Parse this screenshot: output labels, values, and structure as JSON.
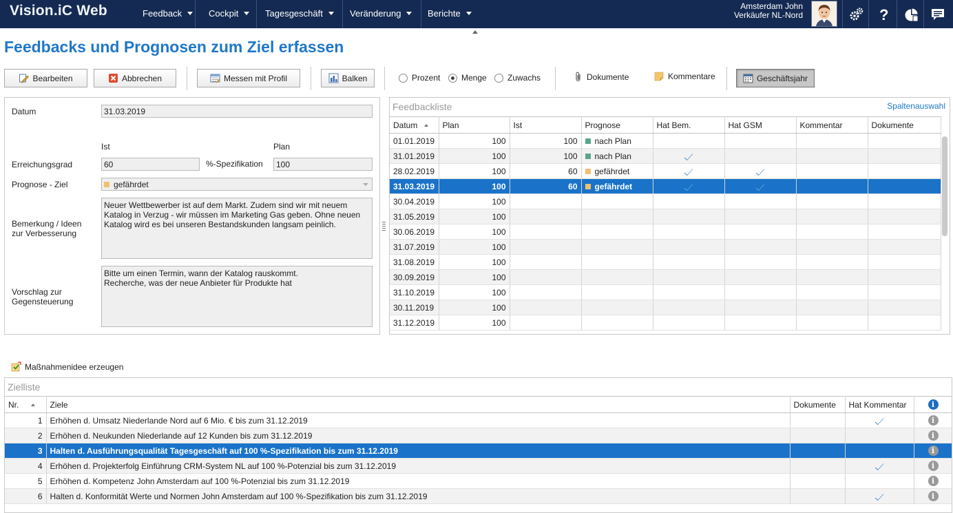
{
  "app": {
    "brand": "Vision.iC Web"
  },
  "nav": [
    {
      "label": "Feedback"
    },
    {
      "label": "Cockpit"
    },
    {
      "label": "Tagesgeschäft"
    },
    {
      "label": "Veränderung"
    },
    {
      "label": "Berichte"
    }
  ],
  "user": {
    "name": "Amsterdam John",
    "role": "Verkäufer NL-Nord"
  },
  "icons": {
    "settings": "gears-icon",
    "help": "question-icon",
    "stats": "pie-chart-icon",
    "messages": "chat-icon"
  },
  "page": {
    "title": "Feedbacks und Prognosen zum Ziel erfassen"
  },
  "toolbar": {
    "edit": "Bearbeiten",
    "cancel": "Abbrechen",
    "measure": "Messen mit Profil",
    "bars": "Balken",
    "radio_percent": "Prozent",
    "radio_amount": "Menge",
    "radio_growth": "Zuwachs",
    "selected_mode": "Menge",
    "documents": "Dokumente",
    "comments": "Kommentare",
    "fiscal_year": "Geschäftsjahr"
  },
  "form": {
    "date_label": "Datum",
    "date_value": "31.03.2019",
    "ist_header": "Ist",
    "plan_header": "Plan",
    "reach_label": "Erreichungsgrad",
    "ist_value": "60",
    "spec_label": "%-Spezifikation",
    "plan_value": "100",
    "forecast_label": "Prognose - Ziel",
    "forecast_value": "gefährdet",
    "remark_label_1": "Bemerkung / Ideen",
    "remark_label_2": "zur Verbesserung",
    "remark_text": "Neuer Wettbewerber ist auf dem Markt. Zudem sind wir mit neuem Katalog in Verzug - wir müssen im Marketing Gas geben. Ohne neuen Katalog wird es bei unseren Bestandskunden langsam peinlich.",
    "proposal_label_1": "Vorschlag zur",
    "proposal_label_2": "Gegensteuerung",
    "proposal_line_1": "Bitte um einen Termin, wann der Katalog rauskommt.",
    "proposal_line_2": "Recherche, was der neue Anbieter für Produkte hat"
  },
  "colors": {
    "plan": "#5aa68a",
    "risk": "#f0c070",
    "accent": "#1a73c9",
    "nav": "#142a52"
  },
  "feedback": {
    "title": "Feedbackliste",
    "column_select": "Spaltenauswahl",
    "columns": [
      "Datum",
      "Plan",
      "Ist",
      "Prognose",
      "Hat Bem.",
      "Hat GSM",
      "Kommentar",
      "Dokumente"
    ],
    "rows": [
      {
        "date": "01.01.2019",
        "plan": "100",
        "ist": "100",
        "prognose": "nach Plan",
        "status": "plan",
        "bem": false,
        "gsm": false
      },
      {
        "date": "31.01.2019",
        "plan": "100",
        "ist": "100",
        "prognose": "nach Plan",
        "status": "plan",
        "bem": true,
        "gsm": false
      },
      {
        "date": "28.02.2019",
        "plan": "100",
        "ist": "60",
        "prognose": "gefährdet",
        "status": "risk",
        "bem": true,
        "gsm": true
      },
      {
        "date": "31.03.2019",
        "plan": "100",
        "ist": "60",
        "prognose": "gefährdet",
        "status": "risk",
        "bem": true,
        "gsm": true,
        "selected": true
      },
      {
        "date": "30.04.2019",
        "plan": "100",
        "ist": "",
        "prognose": "",
        "status": "",
        "bem": false,
        "gsm": false
      },
      {
        "date": "31.05.2019",
        "plan": "100",
        "ist": "",
        "prognose": "",
        "status": "",
        "bem": false,
        "gsm": false
      },
      {
        "date": "30.06.2019",
        "plan": "100",
        "ist": "",
        "prognose": "",
        "status": "",
        "bem": false,
        "gsm": false
      },
      {
        "date": "31.07.2019",
        "plan": "100",
        "ist": "",
        "prognose": "",
        "status": "",
        "bem": false,
        "gsm": false
      },
      {
        "date": "31.08.2019",
        "plan": "100",
        "ist": "",
        "prognose": "",
        "status": "",
        "bem": false,
        "gsm": false
      },
      {
        "date": "30.09.2019",
        "plan": "100",
        "ist": "",
        "prognose": "",
        "status": "",
        "bem": false,
        "gsm": false
      },
      {
        "date": "31.10.2019",
        "plan": "100",
        "ist": "",
        "prognose": "",
        "status": "",
        "bem": false,
        "gsm": false
      },
      {
        "date": "30.11.2019",
        "plan": "100",
        "ist": "",
        "prognose": "",
        "status": "",
        "bem": false,
        "gsm": false
      },
      {
        "date": "31.12.2019",
        "plan": "100",
        "ist": "",
        "prognose": "",
        "status": "",
        "bem": false,
        "gsm": false
      }
    ]
  },
  "measure_idea": "Maßnahmenidee erzeugen",
  "goals": {
    "title": "Zielliste",
    "columns": [
      "Nr.",
      "Ziele",
      "Dokumente",
      "Hat Kommentar"
    ],
    "rows": [
      {
        "nr": "1",
        "text": "Erhöhen d. Umsatz Niederlande Nord auf 6 Mio. € bis zum 31.12.2019",
        "comment": true
      },
      {
        "nr": "2",
        "text": "Erhöhen d. Neukunden Niederlande auf 12 Kunden bis zum 31.12.2019",
        "comment": false
      },
      {
        "nr": "3",
        "text": "Halten d. Ausführungsqualität Tagesgeschäft auf 100 %-Spezifikation bis zum 31.12.2019",
        "comment": false,
        "selected": true
      },
      {
        "nr": "4",
        "text": "Erhöhen d. Projekterfolg Einführung CRM-System NL auf 100 %-Potenzial bis zum 31.12.2019",
        "comment": true
      },
      {
        "nr": "5",
        "text": "Erhöhen d. Kompetenz John Amsterdam auf 100 %-Potenzial bis zum 31.12.2019",
        "comment": false
      },
      {
        "nr": "6",
        "text": "Halten d. Konformität Werte und Normen John Amsterdam auf 100 %-Spezifikation bis zum 31.12.2019",
        "comment": true
      }
    ]
  }
}
